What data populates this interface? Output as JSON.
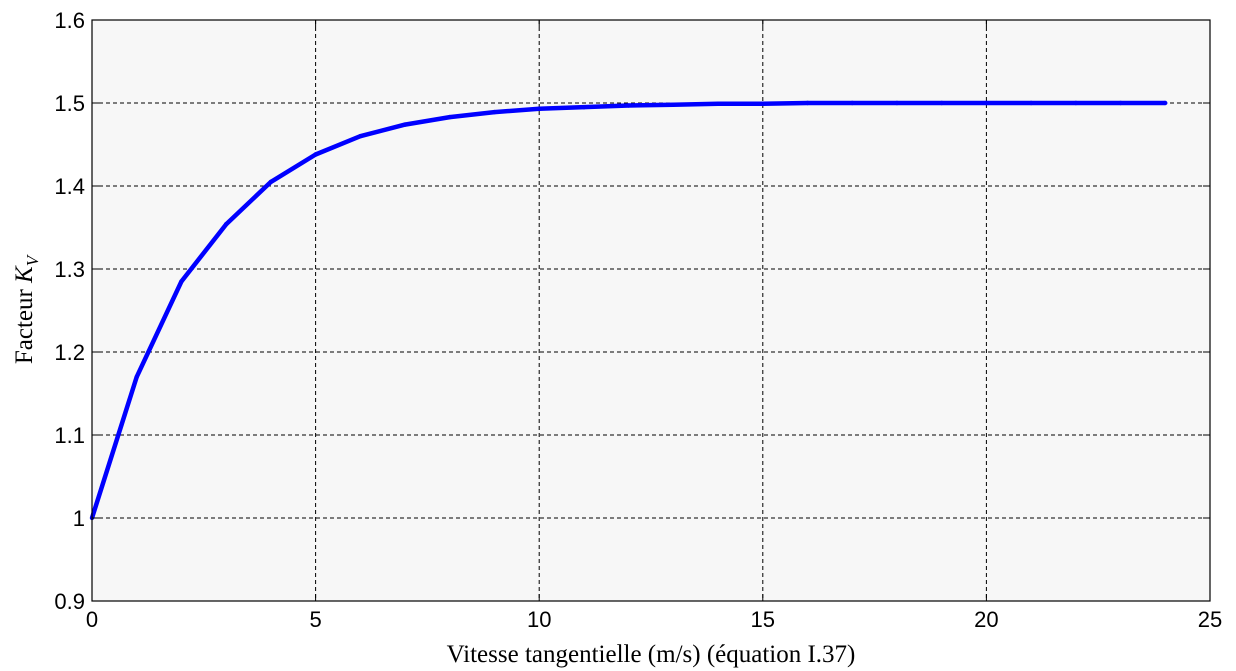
{
  "chart_data": {
    "type": "line",
    "title": "",
    "xlabel": "Vitesse tangentielle (m/s) (équation I.37)",
    "ylabel_prefix": "Facteur ",
    "ylabel_symbol": "K",
    "ylabel_subscript": "V",
    "xlim": [
      0,
      25
    ],
    "ylim": [
      0.9,
      1.6
    ],
    "xticks": [
      0,
      5,
      10,
      15,
      20,
      25
    ],
    "xtick_labels": [
      "0",
      "5",
      "10",
      "15",
      "20",
      "25"
    ],
    "yticks": [
      0.9,
      1.0,
      1.1,
      1.2,
      1.3,
      1.4,
      1.5,
      1.6
    ],
    "ytick_labels": [
      "0.9",
      "1",
      "1.1",
      "1.2",
      "1.3",
      "1.4",
      "1.5",
      "1.6"
    ],
    "grid": true,
    "grid_style": "dashed",
    "background_color": "#f7f7f7",
    "series": [
      {
        "color": "#0000ff",
        "x": [
          0,
          1,
          2,
          3,
          4,
          5,
          6,
          7,
          8,
          9,
          10,
          11,
          12,
          13,
          14,
          15,
          16,
          17,
          18,
          19,
          20,
          21,
          22,
          23,
          24
        ],
        "y": [
          1.0,
          1.17,
          1.285,
          1.354,
          1.405,
          1.438,
          1.46,
          1.474,
          1.483,
          1.489,
          1.493,
          1.495,
          1.497,
          1.498,
          1.499,
          1.499,
          1.5,
          1.5,
          1.5,
          1.5,
          1.5,
          1.5,
          1.5,
          1.5,
          1.5
        ]
      }
    ]
  }
}
